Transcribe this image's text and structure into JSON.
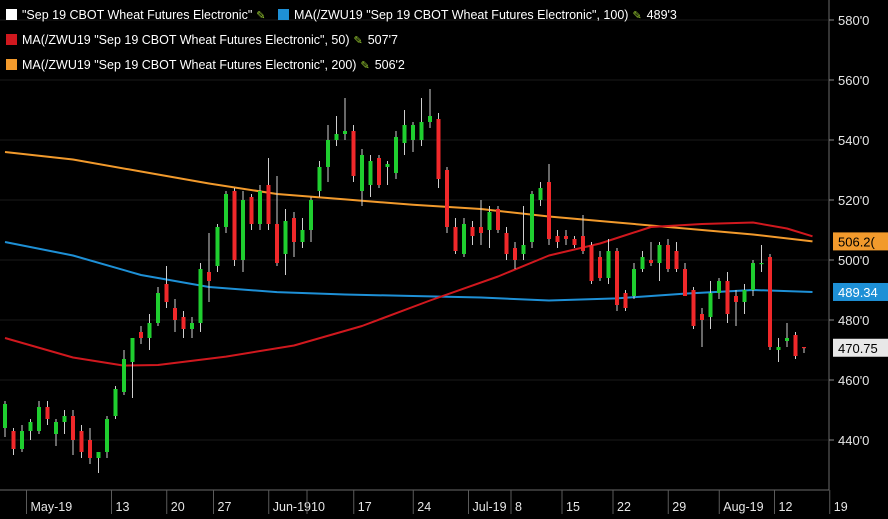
{
  "legend": {
    "main": {
      "label": "\"Sep 19 CBOT Wheat Futures Electronic\"",
      "color": "#ffffff"
    },
    "ma100": {
      "label": "MA(/ZWU19 \"Sep 19 CBOT Wheat Futures Electronic\", 100)",
      "value": "489'3",
      "color": "#1e90d6"
    },
    "ma50": {
      "label": "MA(/ZWU19 \"Sep 19 CBOT Wheat Futures Electronic\", 50)",
      "value": "507'7",
      "color": "#d0181e"
    },
    "ma200": {
      "label": "MA(/ZWU19 \"Sep 19 CBOT Wheat Futures Electronic\", 200)",
      "value": "506'2",
      "color": "#f29a2c"
    }
  },
  "chart_data": {
    "type": "candlestick",
    "y_axis": {
      "ticks": [
        "440'0",
        "460'0",
        "480'0",
        "500'0",
        "520'0",
        "540'0",
        "560'0",
        "580'0"
      ],
      "ylim": [
        430,
        582
      ]
    },
    "x_axis": {
      "ticks": [
        "May-19",
        "13",
        "20",
        "27",
        "Jun-19",
        "10",
        "17",
        "24",
        "Jul-19",
        "8",
        "15",
        "22",
        "29",
        "Aug-19",
        "12",
        "19"
      ]
    },
    "price_tags": {
      "ma200": {
        "text": "506.2(",
        "value": 506.2,
        "color": "#f29a2c"
      },
      "ma100": {
        "text": "489.34",
        "value": 489.34,
        "color": "#1e90d6"
      },
      "last": {
        "text": "470.75",
        "value": 470.75,
        "color": "#e8e8e8"
      }
    },
    "candles": [
      {
        "o": 444,
        "h": 453,
        "l": 441,
        "c": 452
      },
      {
        "o": 443,
        "h": 444,
        "l": 435,
        "c": 437
      },
      {
        "o": 437,
        "h": 445,
        "l": 436,
        "c": 443
      },
      {
        "o": 443,
        "h": 447,
        "l": 440,
        "c": 446
      },
      {
        "o": 443,
        "h": 453,
        "l": 442,
        "c": 451
      },
      {
        "o": 451,
        "h": 453,
        "l": 445,
        "c": 447
      },
      {
        "o": 442,
        "h": 447,
        "l": 438,
        "c": 446
      },
      {
        "o": 446,
        "h": 450,
        "l": 442,
        "c": 448
      },
      {
        "o": 448,
        "h": 450,
        "l": 435,
        "c": 440
      },
      {
        "o": 443,
        "h": 445,
        "l": 434,
        "c": 436
      },
      {
        "o": 440,
        "h": 444,
        "l": 432,
        "c": 434
      },
      {
        "o": 434,
        "h": 436,
        "l": 429,
        "c": 436
      },
      {
        "o": 436,
        "h": 448,
        "l": 434,
        "c": 447
      },
      {
        "o": 448,
        "h": 458,
        "l": 447,
        "c": 457
      },
      {
        "o": 456,
        "h": 470,
        "l": 455,
        "c": 467
      },
      {
        "o": 466,
        "h": 474,
        "l": 454,
        "c": 474
      },
      {
        "o": 476,
        "h": 478,
        "l": 472,
        "c": 474
      },
      {
        "o": 474,
        "h": 482,
        "l": 470,
        "c": 479
      },
      {
        "o": 479,
        "h": 491,
        "l": 478,
        "c": 489
      },
      {
        "o": 492,
        "h": 498,
        "l": 484,
        "c": 486
      },
      {
        "o": 484,
        "h": 487,
        "l": 476,
        "c": 480
      },
      {
        "o": 481,
        "h": 483,
        "l": 474,
        "c": 477
      },
      {
        "o": 477,
        "h": 481,
        "l": 474,
        "c": 479
      },
      {
        "o": 479,
        "h": 499,
        "l": 476,
        "c": 497
      },
      {
        "o": 496,
        "h": 509,
        "l": 486,
        "c": 493
      },
      {
        "o": 498,
        "h": 512,
        "l": 496,
        "c": 511
      },
      {
        "o": 511,
        "h": 523,
        "l": 509,
        "c": 522
      },
      {
        "o": 523,
        "h": 524,
        "l": 498,
        "c": 500
      },
      {
        "o": 500,
        "h": 523,
        "l": 496,
        "c": 520
      },
      {
        "o": 521,
        "h": 522,
        "l": 510,
        "c": 512
      },
      {
        "o": 512,
        "h": 525,
        "l": 510,
        "c": 523
      },
      {
        "o": 525,
        "h": 534,
        "l": 510,
        "c": 512
      },
      {
        "o": 512,
        "h": 528,
        "l": 498,
        "c": 499
      },
      {
        "o": 502,
        "h": 517,
        "l": 495,
        "c": 513
      },
      {
        "o": 514,
        "h": 516,
        "l": 501,
        "c": 506
      },
      {
        "o": 506,
        "h": 514,
        "l": 504,
        "c": 510
      },
      {
        "o": 510,
        "h": 521,
        "l": 506,
        "c": 520
      },
      {
        "o": 523,
        "h": 533,
        "l": 521,
        "c": 531
      },
      {
        "o": 531,
        "h": 545,
        "l": 526,
        "c": 540
      },
      {
        "o": 540,
        "h": 548,
        "l": 538,
        "c": 542
      },
      {
        "o": 542,
        "h": 554,
        "l": 540,
        "c": 543
      },
      {
        "o": 543,
        "h": 545,
        "l": 526,
        "c": 528
      },
      {
        "o": 523,
        "h": 537,
        "l": 518,
        "c": 535
      },
      {
        "o": 525,
        "h": 535,
        "l": 521,
        "c": 533
      },
      {
        "o": 534,
        "h": 535,
        "l": 524,
        "c": 525
      },
      {
        "o": 531,
        "h": 533,
        "l": 525,
        "c": 532
      },
      {
        "o": 529,
        "h": 543,
        "l": 527,
        "c": 541
      },
      {
        "o": 539,
        "h": 550,
        "l": 535,
        "c": 545
      },
      {
        "o": 540,
        "h": 546,
        "l": 536,
        "c": 545
      },
      {
        "o": 540,
        "h": 554,
        "l": 538,
        "c": 546
      },
      {
        "o": 546,
        "h": 557,
        "l": 544,
        "c": 548
      },
      {
        "o": 547,
        "h": 549,
        "l": 524,
        "c": 527
      },
      {
        "o": 530,
        "h": 531,
        "l": 509,
        "c": 511
      },
      {
        "o": 511,
        "h": 514,
        "l": 502,
        "c": 503
      },
      {
        "o": 502,
        "h": 514,
        "l": 501,
        "c": 512
      },
      {
        "o": 511,
        "h": 513,
        "l": 505,
        "c": 508
      },
      {
        "o": 511,
        "h": 520,
        "l": 505,
        "c": 509
      },
      {
        "o": 510,
        "h": 518,
        "l": 504,
        "c": 516
      },
      {
        "o": 517,
        "h": 518,
        "l": 509,
        "c": 510
      },
      {
        "o": 509,
        "h": 511,
        "l": 500,
        "c": 502
      },
      {
        "o": 504,
        "h": 506,
        "l": 497,
        "c": 500
      },
      {
        "o": 502,
        "h": 518,
        "l": 500,
        "c": 505
      },
      {
        "o": 506,
        "h": 523,
        "l": 504,
        "c": 522
      },
      {
        "o": 520,
        "h": 526,
        "l": 518,
        "c": 524
      },
      {
        "o": 526,
        "h": 532,
        "l": 505,
        "c": 507
      },
      {
        "o": 508,
        "h": 510,
        "l": 504,
        "c": 506
      },
      {
        "o": 508,
        "h": 510,
        "l": 505,
        "c": 507
      },
      {
        "o": 507,
        "h": 508,
        "l": 504,
        "c": 505
      },
      {
        "o": 508,
        "h": 515,
        "l": 502,
        "c": 503
      },
      {
        "o": 505,
        "h": 506,
        "l": 492,
        "c": 493
      },
      {
        "o": 501,
        "h": 503,
        "l": 493,
        "c": 494
      },
      {
        "o": 494,
        "h": 507,
        "l": 492,
        "c": 503
      },
      {
        "o": 503,
        "h": 504,
        "l": 483,
        "c": 485
      },
      {
        "o": 489,
        "h": 490,
        "l": 483,
        "c": 484
      },
      {
        "o": 488,
        "h": 499,
        "l": 487,
        "c": 497
      },
      {
        "o": 497,
        "h": 503,
        "l": 496,
        "c": 501
      },
      {
        "o": 500,
        "h": 506,
        "l": 498,
        "c": 499
      },
      {
        "o": 499,
        "h": 506,
        "l": 493,
        "c": 505
      },
      {
        "o": 505,
        "h": 507,
        "l": 496,
        "c": 497
      },
      {
        "o": 503,
        "h": 506,
        "l": 496,
        "c": 497
      },
      {
        "o": 497,
        "h": 499,
        "l": 488,
        "c": 488
      },
      {
        "o": 490,
        "h": 491,
        "l": 477,
        "c": 478
      },
      {
        "o": 482,
        "h": 484,
        "l": 471,
        "c": 480
      },
      {
        "o": 481,
        "h": 493,
        "l": 477,
        "c": 489
      },
      {
        "o": 489,
        "h": 494,
        "l": 487,
        "c": 493
      },
      {
        "o": 493,
        "h": 496,
        "l": 479,
        "c": 482
      },
      {
        "o": 488,
        "h": 490,
        "l": 478,
        "c": 486
      },
      {
        "o": 486,
        "h": 492,
        "l": 482,
        "c": 490
      },
      {
        "o": 490,
        "h": 500,
        "l": 488,
        "c": 499
      },
      {
        "o": 499,
        "h": 505,
        "l": 496,
        "c": 499
      },
      {
        "o": 501,
        "h": 502,
        "l": 470,
        "c": 471
      },
      {
        "o": 470,
        "h": 474,
        "l": 466,
        "c": 471
      },
      {
        "o": 473,
        "h": 479,
        "l": 471,
        "c": 474
      },
      {
        "o": 475,
        "h": 476,
        "l": 467,
        "c": 468
      },
      {
        "o": 471,
        "h": 471,
        "l": 469,
        "c": 470.75
      }
    ],
    "ma200": [
      {
        "i": 0,
        "v": 536.0
      },
      {
        "i": 8,
        "v": 533.5
      },
      {
        "i": 16,
        "v": 529.5
      },
      {
        "i": 24,
        "v": 525.5
      },
      {
        "i": 32,
        "v": 522.0
      },
      {
        "i": 40,
        "v": 520.2
      },
      {
        "i": 48,
        "v": 518.4
      },
      {
        "i": 56,
        "v": 517.0
      },
      {
        "i": 64,
        "v": 514.5
      },
      {
        "i": 72,
        "v": 512.5
      },
      {
        "i": 80,
        "v": 510.5
      },
      {
        "i": 88,
        "v": 508.5
      },
      {
        "i": 95,
        "v": 506.2
      }
    ],
    "ma100": [
      {
        "i": 0,
        "v": 506.0
      },
      {
        "i": 8,
        "v": 501.5
      },
      {
        "i": 16,
        "v": 495.0
      },
      {
        "i": 24,
        "v": 491.0
      },
      {
        "i": 32,
        "v": 489.3
      },
      {
        "i": 40,
        "v": 488.5
      },
      {
        "i": 48,
        "v": 488.0
      },
      {
        "i": 56,
        "v": 487.5
      },
      {
        "i": 64,
        "v": 486.5
      },
      {
        "i": 72,
        "v": 487.2
      },
      {
        "i": 80,
        "v": 488.8
      },
      {
        "i": 88,
        "v": 490.0
      },
      {
        "i": 95,
        "v": 489.34
      }
    ],
    "ma50": [
      {
        "i": 0,
        "v": 474.0
      },
      {
        "i": 8,
        "v": 467.5
      },
      {
        "i": 14,
        "v": 464.8
      },
      {
        "i": 18,
        "v": 465.0
      },
      {
        "i": 26,
        "v": 467.8
      },
      {
        "i": 34,
        "v": 471.5
      },
      {
        "i": 42,
        "v": 478.0
      },
      {
        "i": 50,
        "v": 486.5
      },
      {
        "i": 58,
        "v": 494.5
      },
      {
        "i": 64,
        "v": 501.5
      },
      {
        "i": 70,
        "v": 505.5
      },
      {
        "i": 76,
        "v": 511.0
      },
      {
        "i": 82,
        "v": 512.0
      },
      {
        "i": 88,
        "v": 512.5
      },
      {
        "i": 92,
        "v": 510.5
      },
      {
        "i": 95,
        "v": 507.9
      }
    ]
  }
}
